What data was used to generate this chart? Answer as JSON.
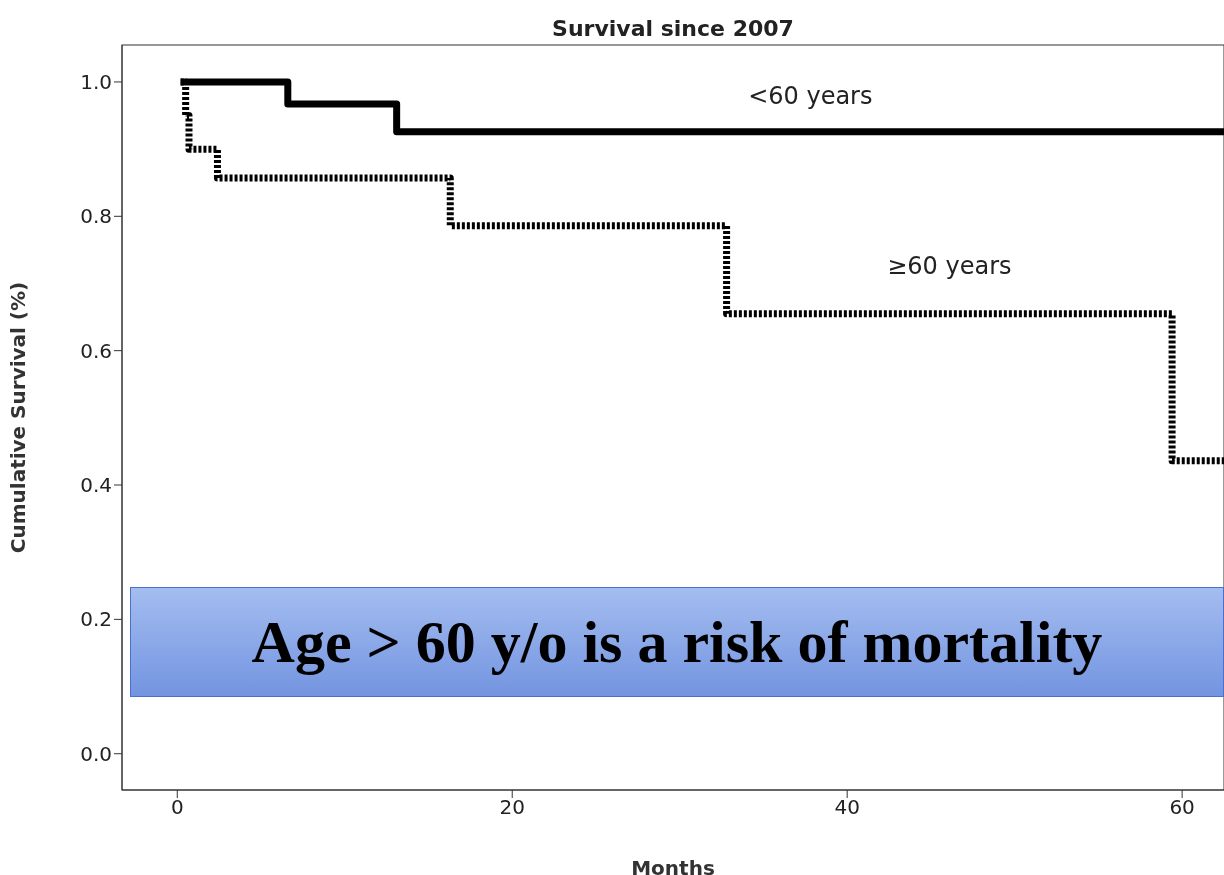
{
  "chart_data": {
    "type": "step",
    "title": "Survival since 2007",
    "xlabel": "Months",
    "ylabel": "Cumulative Survival (%)",
    "xlim": [
      -3.3,
      62.5
    ],
    "xticks": [
      0,
      20,
      40,
      60
    ],
    "ylim": [
      -0.054,
      1.055
    ],
    "yticks": [
      {
        "value": 0,
        "label": "0.0"
      },
      {
        "value": 0.2,
        "label": "0.2"
      },
      {
        "value": 0.4,
        "label": "0.4"
      },
      {
        "value": 0.6,
        "label": "0.6"
      },
      {
        "value": 0.8,
        "label": "0.8"
      },
      {
        "value": 1,
        "label": "1.0"
      }
    ],
    "grid": false,
    "legend": false,
    "marker": "none",
    "series": [
      {
        "name": "<60 years",
        "color": "#000000",
        "line_style": "solid",
        "x": [
          0.2,
          6.6,
          13.1,
          62.5
        ],
        "values": [
          1.0,
          0.967,
          0.926,
          0.926
        ]
      },
      {
        "name": "≥60 years",
        "color": "#000000",
        "line_style": "dotted",
        "x": [
          0.2,
          0.5,
          0.7,
          2.4,
          16.3,
          32.8,
          59.4,
          62.5
        ],
        "values": [
          1.0,
          0.95,
          0.9,
          0.857,
          0.786,
          0.655,
          0.436,
          0.436
        ]
      }
    ],
    "annotations": [
      "Age > 60 y/o is a risk of mortality"
    ]
  }
}
